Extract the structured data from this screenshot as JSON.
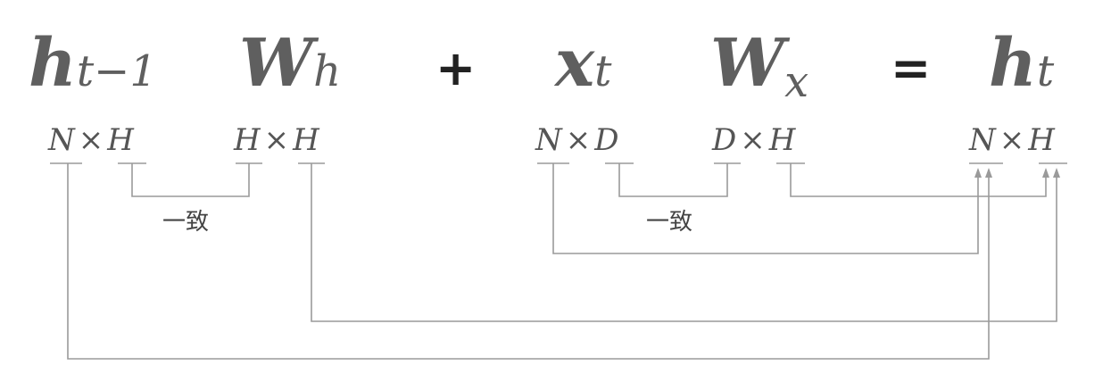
{
  "equation": {
    "h_prev": {
      "base": "h",
      "sub": "t−1"
    },
    "W_h": {
      "base": "W",
      "sub": "h"
    },
    "plus": "+",
    "x_t": {
      "base": "x",
      "sub": "t"
    },
    "W_x": {
      "base": "W",
      "sub": "x"
    },
    "equals": "=",
    "h_t": {
      "base": "h",
      "sub": "t"
    }
  },
  "dimensions": {
    "h_prev": {
      "rows": "N",
      "times": "×",
      "cols": "H"
    },
    "W_h": {
      "rows": "H",
      "times": "×",
      "cols": "H"
    },
    "x_t": {
      "rows": "N",
      "times": "×",
      "cols": "D"
    },
    "W_x": {
      "rows": "D",
      "times": "×",
      "cols": "H"
    },
    "h_t": {
      "rows": "N",
      "times": "×",
      "cols": "H"
    }
  },
  "annotations": {
    "match_left": "一致",
    "match_right": "一致"
  }
}
